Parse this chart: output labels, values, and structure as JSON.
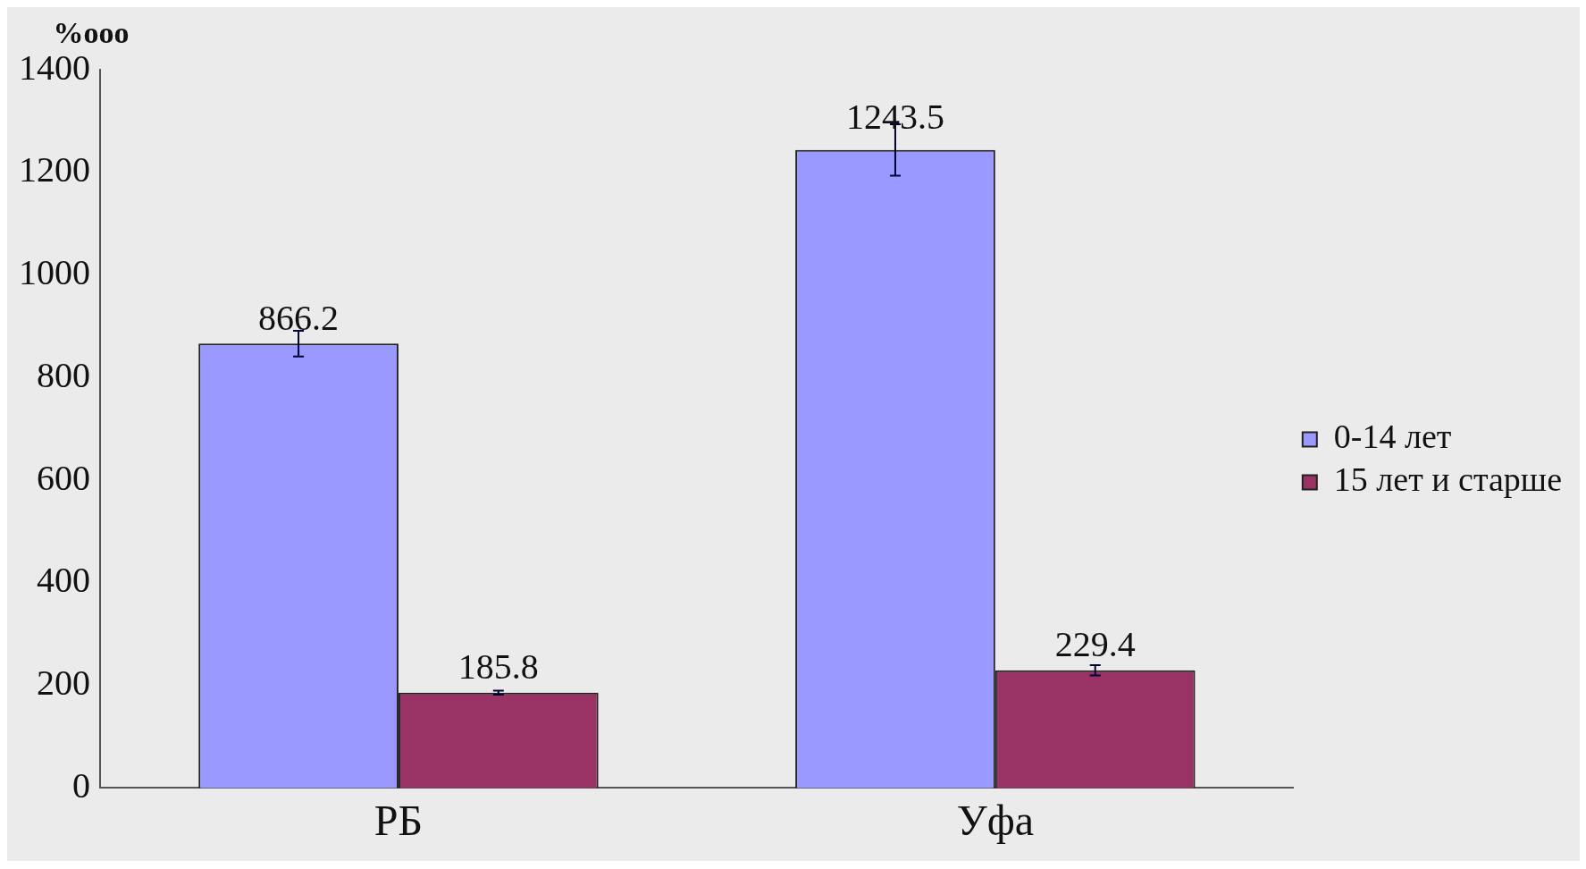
{
  "chart_data": {
    "type": "bar",
    "ylabel": "%ooo",
    "categories": [
      "РБ",
      "Уфа"
    ],
    "series": [
      {
        "name": "0-14 лет",
        "color": "#9999ff",
        "values": [
          866.2,
          1243.5
        ],
        "errors": [
          25,
          50
        ]
      },
      {
        "name": "15 лет и старше",
        "color": "#993366",
        "values": [
          185.8,
          229.4
        ],
        "errors": [
          4,
          10
        ]
      }
    ],
    "ylim": [
      0,
      1400
    ],
    "yticks": [
      0,
      200,
      400,
      600,
      800,
      1000,
      1200,
      1400
    ],
    "grid": false,
    "legend": "right",
    "data_labels": true
  }
}
